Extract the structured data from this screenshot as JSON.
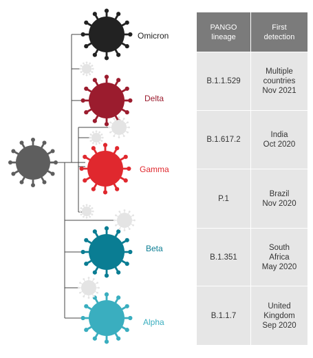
{
  "table": {
    "headers": [
      "PANGO\nlineage",
      "First\ndetection"
    ],
    "rows": [
      {
        "lineage": "B.1.1.529",
        "detection": "Multiple\ncountries\nNov 2021"
      },
      {
        "lineage": "B.1.617.2",
        "detection": "India\nOct 2020"
      },
      {
        "lineage": "P.1",
        "detection": "Brazil\nNov 2020"
      },
      {
        "lineage": "B.1.351",
        "detection": "South\nAfrica\nMay 2020"
      },
      {
        "lineage": "B.1.1.7",
        "detection": "United\nKingdom\nSep 2020"
      }
    ]
  },
  "variants": [
    {
      "label": "Omicron",
      "color": "#222222",
      "label_color": "#222222"
    },
    {
      "label": "Delta",
      "color": "#9b1c2e",
      "label_color": "#9b1c2e"
    },
    {
      "label": "Gamma",
      "color": "#e0282e",
      "label_color": "#e0282e"
    },
    {
      "label": "Beta",
      "color": "#0a7d93",
      "label_color": "#0a7d93"
    },
    {
      "label": "Alpha",
      "color": "#3aaebf",
      "label_color": "#3aaebf"
    }
  ],
  "ancestor_color": "#5e5e5e",
  "minor_color": "#e4e4e4",
  "line_color": "#444444"
}
